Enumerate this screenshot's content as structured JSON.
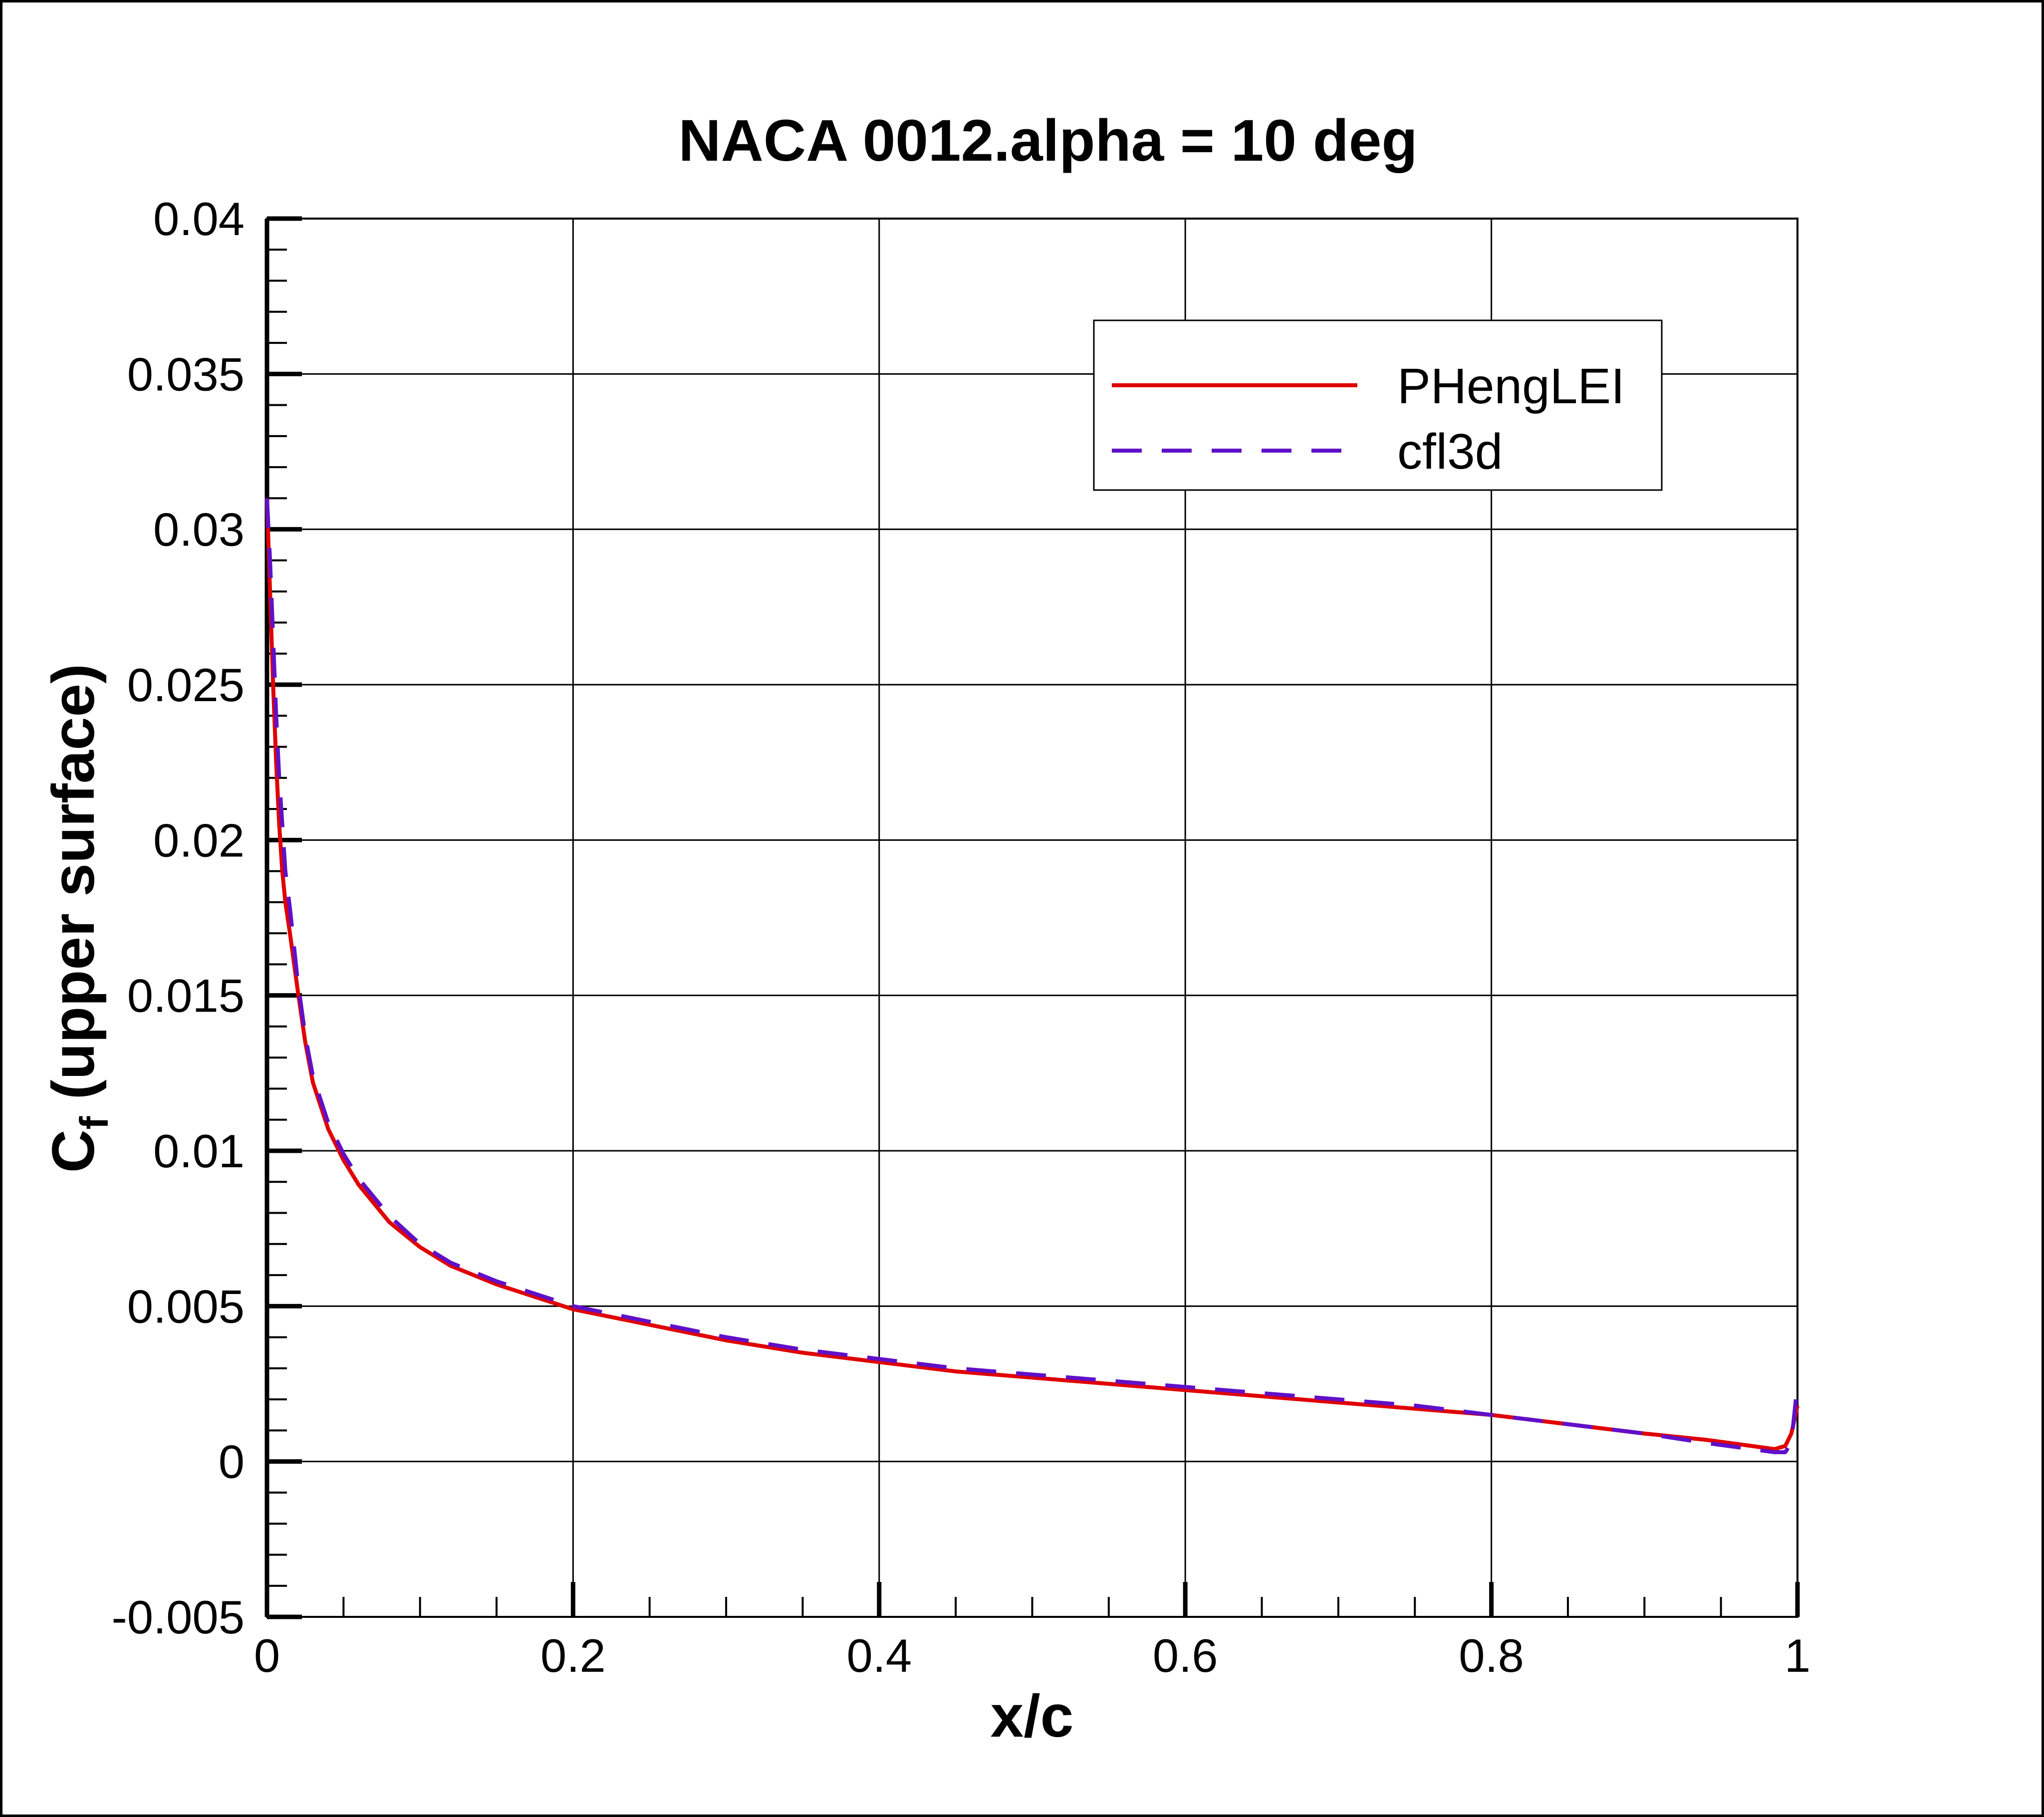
{
  "chart_data": {
    "type": "line",
    "title": "NACA 0012.alpha = 10 deg",
    "xlabel": "x/c",
    "ylabel_main": "C",
    "ylabel_sub": "f",
    "ylabel_rest": " (upper surface)",
    "xlim": [
      0,
      1
    ],
    "ylim": [
      -0.005,
      0.04
    ],
    "grid": true,
    "legend_position": "top-right",
    "x_major_ticks": [
      0,
      0.2,
      0.4,
      0.6,
      0.8,
      1
    ],
    "x_tick_labels": [
      "0",
      "0.2",
      "0.4",
      "0.6",
      "0.8",
      "1"
    ],
    "x_minor_ticks": [
      0.05,
      0.1,
      0.15,
      0.25,
      0.3,
      0.35,
      0.45,
      0.5,
      0.55,
      0.65,
      0.7,
      0.75,
      0.85,
      0.9,
      0.95
    ],
    "y_major_ticks": [
      -0.005,
      0,
      0.005,
      0.01,
      0.015,
      0.02,
      0.025,
      0.03,
      0.035,
      0.04
    ],
    "y_tick_labels": [
      "-0.005",
      "0",
      "0.005",
      "0.01",
      "0.015",
      "0.02",
      "0.025",
      "0.03",
      "0.035",
      "0.04"
    ],
    "y_minor_step": 0.001,
    "series": [
      {
        "name": "PHengLEI",
        "color": "#e00000",
        "dash": "solid",
        "x": [
          0.0,
          0.002,
          0.004,
          0.006,
          0.008,
          0.01,
          0.012,
          0.015,
          0.02,
          0.025,
          0.03,
          0.04,
          0.05,
          0.06,
          0.08,
          0.1,
          0.12,
          0.15,
          0.2,
          0.25,
          0.3,
          0.35,
          0.4,
          0.45,
          0.5,
          0.55,
          0.6,
          0.65,
          0.7,
          0.75,
          0.8,
          0.85,
          0.9,
          0.94,
          0.97,
          0.985,
          0.992,
          0.996,
          1.0
        ],
        "y": [
          0.031,
          0.028,
          0.025,
          0.0225,
          0.0205,
          0.019,
          0.018,
          0.017,
          0.0152,
          0.0135,
          0.0122,
          0.0107,
          0.0097,
          0.0089,
          0.0077,
          0.0069,
          0.0063,
          0.0057,
          0.0049,
          0.0044,
          0.0039,
          0.0035,
          0.0032,
          0.0029,
          0.0027,
          0.0025,
          0.0023,
          0.0021,
          0.0019,
          0.0017,
          0.0015,
          0.0012,
          0.0009,
          0.0007,
          0.0005,
          0.0004,
          0.0005,
          0.0009,
          0.0018
        ]
      },
      {
        "name": "cfl3d",
        "color": "#6010c8",
        "dash": "dashed",
        "x": [
          0.0,
          0.002,
          0.004,
          0.006,
          0.008,
          0.01,
          0.012,
          0.015,
          0.02,
          0.025,
          0.03,
          0.04,
          0.05,
          0.06,
          0.08,
          0.1,
          0.12,
          0.15,
          0.2,
          0.25,
          0.3,
          0.35,
          0.4,
          0.45,
          0.5,
          0.55,
          0.6,
          0.65,
          0.7,
          0.75,
          0.8,
          0.85,
          0.9,
          0.94,
          0.97,
          0.985,
          0.992,
          0.996,
          1.0
        ],
        "y": [
          0.031,
          0.029,
          0.0265,
          0.024,
          0.022,
          0.0205,
          0.019,
          0.0178,
          0.0155,
          0.0137,
          0.0124,
          0.0109,
          0.0099,
          0.0091,
          0.0079,
          0.007,
          0.0064,
          0.0058,
          0.005,
          0.0045,
          0.004,
          0.0036,
          0.0033,
          0.003,
          0.0028,
          0.0026,
          0.0024,
          0.0022,
          0.002,
          0.0018,
          0.0015,
          0.0012,
          0.0009,
          0.0006,
          0.0004,
          0.0003,
          0.0003,
          0.0006,
          0.0025
        ]
      }
    ]
  }
}
